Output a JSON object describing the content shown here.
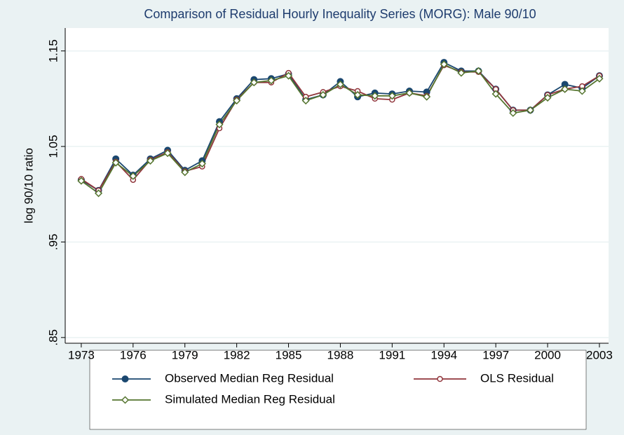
{
  "chart_data": {
    "type": "line",
    "title": "Comparison of Residual Hourly Inequality Series (MORG): Male 90/10",
    "y_label": "log 90/10 ratio",
    "x": [
      1973,
      1974,
      1975,
      1976,
      1977,
      1978,
      1979,
      1980,
      1981,
      1982,
      1983,
      1984,
      1985,
      1986,
      1987,
      1988,
      1989,
      1990,
      1991,
      1992,
      1993,
      1994,
      1995,
      1996,
      1997,
      1998,
      1999,
      2000,
      2001,
      2002,
      2003
    ],
    "series": [
      {
        "name": "Observed Median Reg Residual",
        "color": "#1a476f",
        "marker": "filled-circle",
        "values": [
          1.015,
          1.004,
          1.037,
          1.02,
          1.037,
          1.046,
          1.025,
          1.035,
          1.076,
          1.1,
          1.12,
          1.121,
          1.126,
          1.099,
          1.104,
          1.118,
          1.102,
          1.106,
          1.105,
          1.108,
          1.107,
          1.138,
          1.129,
          1.129,
          1.11,
          1.088,
          1.088,
          1.104,
          1.115,
          1.111,
          1.124
        ]
      },
      {
        "name": "OLS Residual",
        "color": "#90353b",
        "marker": "hollow-circle",
        "values": [
          1.016,
          1.004,
          1.034,
          1.015,
          1.036,
          1.044,
          1.024,
          1.029,
          1.069,
          1.099,
          1.117,
          1.117,
          1.127,
          1.102,
          1.107,
          1.113,
          1.108,
          1.1,
          1.099,
          1.106,
          1.103,
          1.135,
          1.128,
          1.128,
          1.11,
          1.088,
          1.088,
          1.104,
          1.11,
          1.113,
          1.124
        ]
      },
      {
        "name": "Simulated Median Reg Residual",
        "color": "#55752f",
        "marker": "hollow-diamond",
        "values": [
          1.014,
          1.001,
          1.033,
          1.019,
          1.035,
          1.043,
          1.023,
          1.032,
          1.073,
          1.098,
          1.117,
          1.119,
          1.124,
          1.098,
          1.104,
          1.115,
          1.104,
          1.103,
          1.103,
          1.106,
          1.102,
          1.136,
          1.127,
          1.129,
          1.105,
          1.085,
          1.088,
          1.101,
          1.11,
          1.108,
          1.121
        ]
      }
    ],
    "xlim": [
      1972.07,
      2003.53
    ],
    "xticks": [
      1973,
      1976,
      1979,
      1982,
      1985,
      1988,
      1991,
      1994,
      1997,
      2000,
      2003
    ],
    "ylim": [
      0.844,
      1.174
    ],
    "yticks": [
      {
        "value": 0.85,
        "label": ".85"
      },
      {
        "value": 0.95,
        "label": ".95"
      },
      1.05,
      1.15
    ],
    "grid": true,
    "legend": "bottom"
  }
}
